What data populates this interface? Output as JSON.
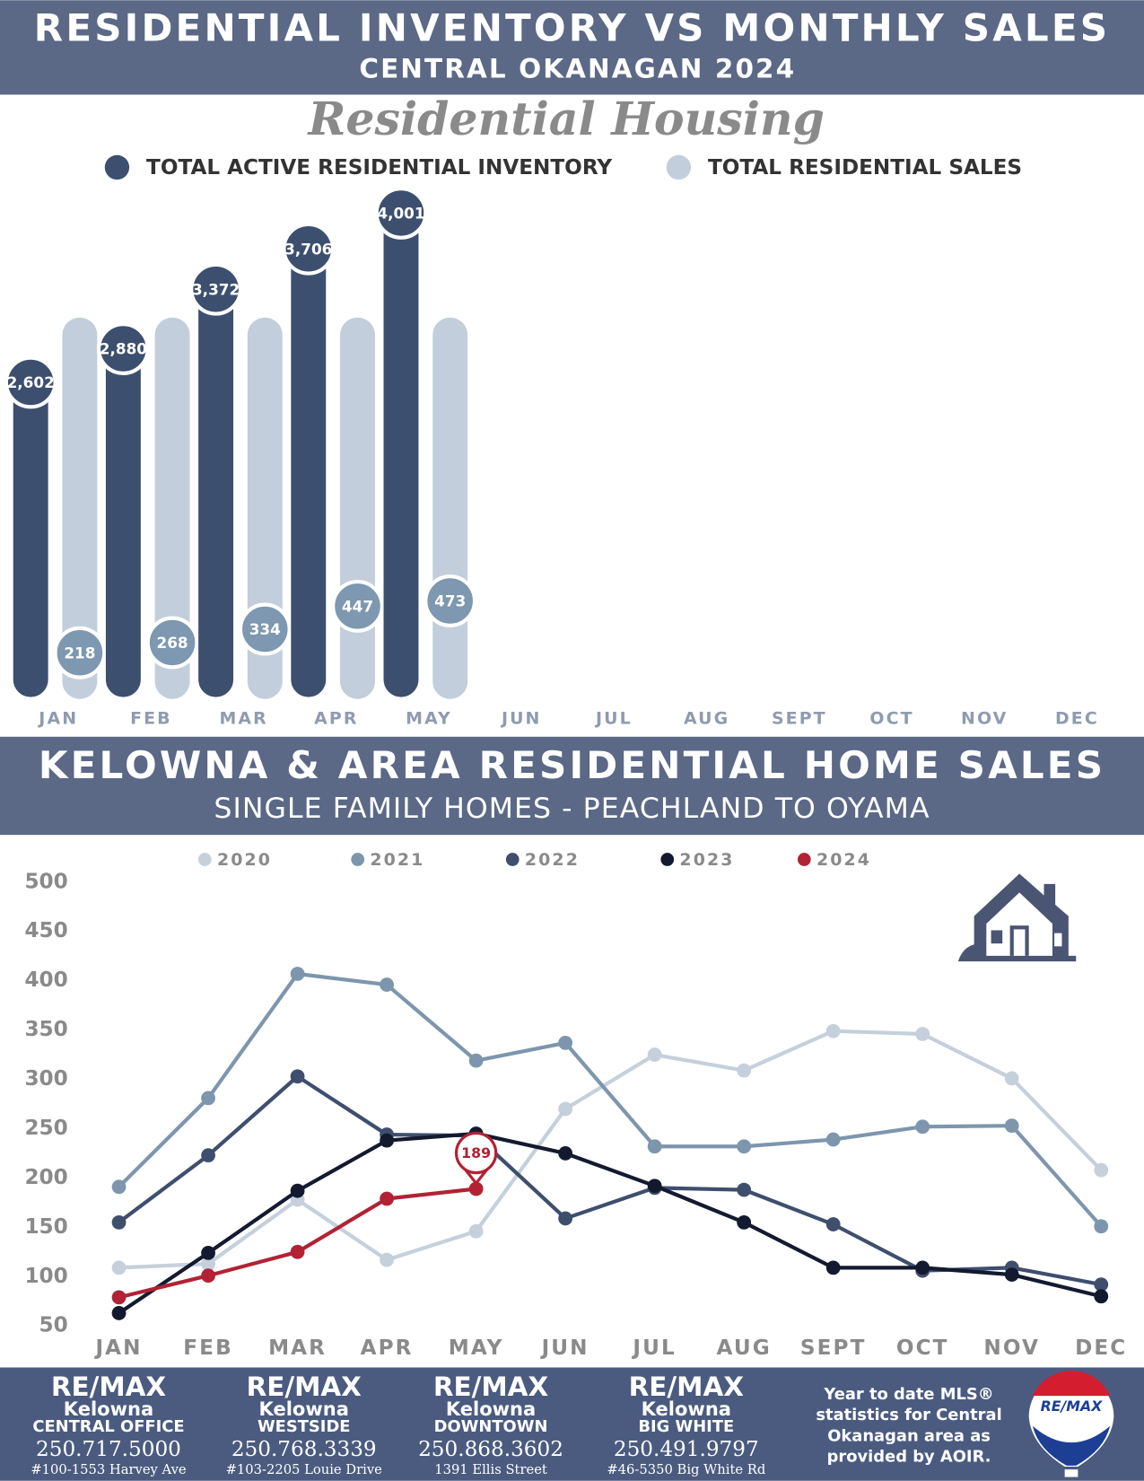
{
  "chart_data": [
    {
      "type": "bar",
      "title": "RESIDENTIAL INVENTORY VS MONTHLY SALES",
      "subtitle": "CENTRAL OKANAGAN 2024",
      "heading": "Residential Housing",
      "categories": [
        "JAN",
        "FEB",
        "MAR",
        "APR",
        "MAY",
        "JUN",
        "JUL",
        "AUG",
        "SEPT",
        "OCT",
        "NOV",
        "DEC"
      ],
      "series": [
        {
          "name": "TOTAL ACTIVE RESIDENTIAL INVENTORY",
          "color": "#3d4f6f",
          "values": [
            2602,
            2880,
            3372,
            3706,
            4001,
            null,
            null,
            null,
            null,
            null,
            null,
            null
          ],
          "value_labels": [
            "2,602",
            "2,880",
            "3,372",
            "3,706",
            "4,001",
            null,
            null,
            null,
            null,
            null,
            null,
            null
          ]
        },
        {
          "name": "TOTAL RESIDENTIAL SALES",
          "color": "#c2cedb",
          "axis": "y2",
          "values": [
            218,
            268,
            334,
            447,
            473,
            null,
            null,
            null,
            null,
            null,
            null,
            null
          ]
        }
      ],
      "ylim": [
        0,
        4200
      ],
      "y2lim": [
        0,
        2500
      ],
      "legend": "top"
    },
    {
      "type": "line",
      "title": "KELOWNA & AREA RESIDENTIAL HOME SALES",
      "subtitle": "SINGLE FAMILY HOMES - PEACHLAND TO OYAMA",
      "categories": [
        "JAN",
        "FEB",
        "MAR",
        "APR",
        "MAY",
        "JUN",
        "JUL",
        "AUG",
        "SEPT",
        "OCT",
        "NOV",
        "DEC"
      ],
      "series": [
        {
          "name": "2020",
          "color": "#c5d0dc",
          "values": [
            109,
            113,
            178,
            117,
            146,
            270,
            325,
            309,
            349,
            346,
            301,
            208
          ]
        },
        {
          "name": "2021",
          "color": "#7d96ad",
          "values": [
            191,
            281,
            407,
            396,
            319,
            337,
            232,
            232,
            239,
            252,
            253,
            151
          ]
        },
        {
          "name": "2022",
          "color": "#3e4f6e",
          "values": [
            155,
            223,
            303,
            244,
            243,
            159,
            190,
            188,
            153,
            106,
            109,
            92
          ]
        },
        {
          "name": "2023",
          "color": "#131a30",
          "values": [
            63,
            124,
            187,
            238,
            245,
            225,
            192,
            155,
            109,
            109,
            102,
            80
          ]
        },
        {
          "name": "2024",
          "color": "#b22234",
          "values": [
            79,
            101,
            125,
            179,
            189,
            null,
            null,
            null,
            null,
            null,
            null,
            null
          ]
        }
      ],
      "annotation_series": 4,
      "annotation_index": 4,
      "ylim": [
        50,
        500
      ],
      "yticks": [
        50,
        100,
        150,
        200,
        250,
        300,
        350,
        400,
        450,
        500
      ],
      "grid": false,
      "legend": "top"
    }
  ],
  "footer": {
    "offices": [
      {
        "brand": "RE/MAX",
        "city": "Kelowna",
        "office": "CENTRAL OFFICE",
        "phone": "250.717.5000",
        "address": "#100-1553 Harvey Ave"
      },
      {
        "brand": "RE/MAX",
        "city": "Kelowna",
        "office": "WESTSIDE",
        "phone": "250.768.3339",
        "address": "#103-2205 Louie Drive"
      },
      {
        "brand": "RE/MAX",
        "city": "Kelowna",
        "office": "DOWNTOWN",
        "phone": "250.868.3602",
        "address": "1391 Ellis Street"
      },
      {
        "brand": "RE/MAX",
        "city": "Kelowna",
        "office": "BIG WHITE",
        "phone": "250.491.9797",
        "address": "#46-5350 Big White Rd"
      }
    ],
    "note": [
      "Year to date MLS®",
      "statistics for Central",
      "Okanagan area as",
      "provided by AOIR."
    ],
    "logo": "RE/MAX"
  }
}
